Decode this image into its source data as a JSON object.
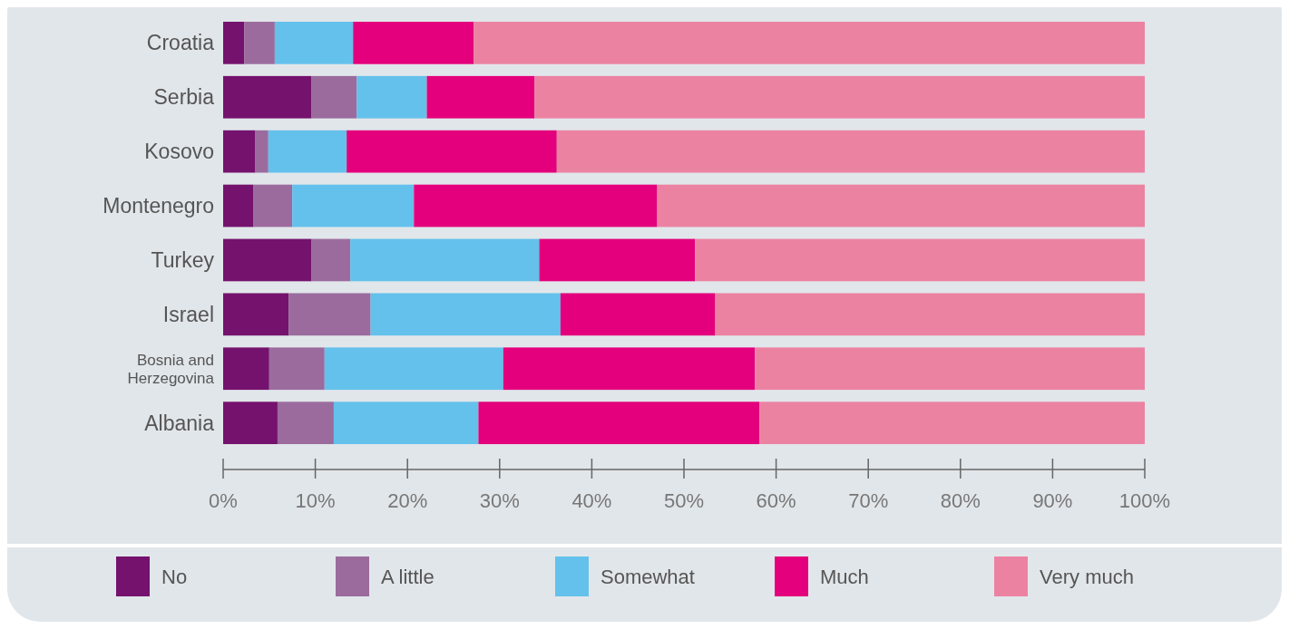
{
  "chart_data": {
    "type": "bar",
    "orientation": "horizontal",
    "stacked": true,
    "categories": [
      "Croatia",
      "Serbia",
      "Kosovo",
      "Montenegro",
      "Turkey",
      "Israel",
      "Bosnia and Herzegovina",
      "Albania"
    ],
    "series": [
      {
        "name": "No",
        "color": "#74126e",
        "values": [
          2.3,
          9.6,
          3.5,
          3.3,
          9.6,
          7.1,
          5.0,
          5.9
        ]
      },
      {
        "name": "A little",
        "color": "#9b6b9e",
        "values": [
          3.3,
          4.9,
          1.4,
          4.2,
          4.2,
          8.9,
          6.0,
          6.1
        ]
      },
      {
        "name": "Somewhat",
        "color": "#64c1ec",
        "values": [
          8.5,
          7.6,
          8.5,
          13.2,
          20.5,
          20.6,
          19.4,
          15.7
        ]
      },
      {
        "name": "Much",
        "color": "#e4007c",
        "values": [
          13.1,
          11.7,
          22.8,
          26.4,
          16.9,
          16.8,
          27.3,
          30.5
        ]
      },
      {
        "name": "Very much",
        "color": "#ec82a2",
        "values": [
          72.8,
          66.2,
          63.8,
          52.9,
          48.8,
          46.6,
          42.3,
          41.8
        ]
      }
    ],
    "xlim": [
      0,
      100
    ],
    "xticks": [
      {
        "value": 0,
        "label": "0%"
      },
      {
        "value": 10,
        "label": "10%"
      },
      {
        "value": 20,
        "label": "20%"
      },
      {
        "value": 30,
        "label": "30%"
      },
      {
        "value": 40,
        "label": "40%"
      },
      {
        "value": 50,
        "label": "50%"
      },
      {
        "value": 60,
        "label": "60%"
      },
      {
        "value": 70,
        "label": "70%"
      },
      {
        "value": 80,
        "label": "80%"
      },
      {
        "value": 90,
        "label": "90%"
      },
      {
        "value": 100,
        "label": "100%"
      }
    ],
    "grid": false,
    "legend": "bottom"
  }
}
